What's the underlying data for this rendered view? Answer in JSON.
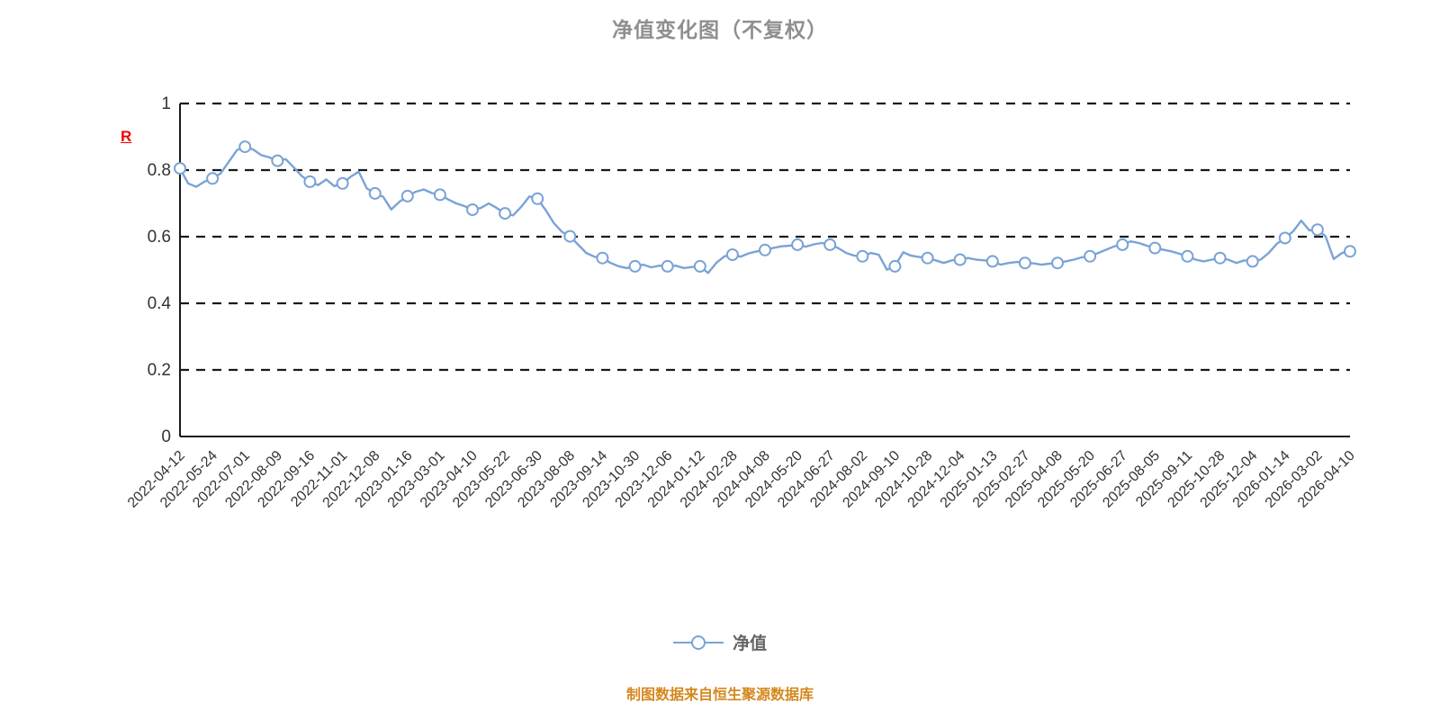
{
  "title": {
    "text": "净值变化图（不复权）",
    "color": "#8f8f8f"
  },
  "watermark": {
    "text": "R",
    "color": "#f00000"
  },
  "legend": {
    "label": "净值",
    "marker_color": "#7aa3d6"
  },
  "caption": {
    "text": "制图数据来自恒生聚源数据库",
    "color": "#d4881f"
  },
  "chart_data": {
    "type": "line",
    "title": "净值变化图（不复权）",
    "series_name": "净值",
    "line_color": "#7aa3d6",
    "marker_fill": "#ffffff",
    "grid_color": "#1a1a1a",
    "axis_color": "#1a1a1a",
    "tick_label_color": "#333333",
    "grid_style": "dashed-horizontal",
    "legend_position": "bottom-center",
    "ylim": [
      0,
      1
    ],
    "y_tick_values": [
      0,
      0.2,
      0.4,
      0.6,
      0.8,
      1
    ],
    "y_tick_labels": [
      "0",
      "0.2",
      "0.4",
      "0.6",
      "0.8",
      "1"
    ],
    "x_tick_labels": [
      "2022-04-12",
      "2022-05-24",
      "2022-07-01",
      "2022-08-09",
      "2022-09-16",
      "2022-11-01",
      "2022-12-08",
      "2023-01-16",
      "2023-03-01",
      "2023-04-10",
      "2023-05-22",
      "2023-06-30",
      "2023-08-08",
      "2023-09-14",
      "2023-10-30",
      "2023-12-06",
      "2024-01-12",
      "2024-02-28",
      "2024-04-08",
      "2024-05-20",
      "2024-06-27",
      "2024-08-02",
      "2024-09-10",
      "2024-10-28",
      "2024-12-04",
      "2025-01-13",
      "2025-02-27",
      "2025-04-08",
      "2025-05-20",
      "2025-06-27",
      "2025-08-05",
      "2025-09-11",
      "2025-10-28",
      "2025-12-04",
      "2026-01-14",
      "2026-03-02",
      "2026-04-10"
    ],
    "points_per_label_interval": 4,
    "marker_every": 4,
    "values": [
      0.805,
      0.76,
      0.75,
      0.765,
      0.775,
      0.79,
      0.825,
      0.86,
      0.87,
      0.862,
      0.845,
      0.838,
      0.828,
      0.833,
      0.808,
      0.782,
      0.765,
      0.755,
      0.772,
      0.752,
      0.76,
      0.78,
      0.795,
      0.745,
      0.73,
      0.72,
      0.682,
      0.705,
      0.722,
      0.735,
      0.742,
      0.731,
      0.726,
      0.712,
      0.7,
      0.692,
      0.681,
      0.686,
      0.7,
      0.686,
      0.67,
      0.664,
      0.69,
      0.721,
      0.714,
      0.68,
      0.641,
      0.615,
      0.601,
      0.576,
      0.551,
      0.54,
      0.536,
      0.521,
      0.511,
      0.506,
      0.511,
      0.516,
      0.508,
      0.513,
      0.511,
      0.513,
      0.506,
      0.509,
      0.511,
      0.491,
      0.521,
      0.541,
      0.546,
      0.54,
      0.55,
      0.556,
      0.56,
      0.566,
      0.571,
      0.573,
      0.576,
      0.57,
      0.577,
      0.581,
      0.576,
      0.566,
      0.551,
      0.543,
      0.541,
      0.551,
      0.546,
      0.501,
      0.511,
      0.553,
      0.543,
      0.539,
      0.536,
      0.529,
      0.521,
      0.529,
      0.531,
      0.536,
      0.531,
      0.529,
      0.526,
      0.516,
      0.521,
      0.524,
      0.521,
      0.52,
      0.516,
      0.519,
      0.521,
      0.526,
      0.531,
      0.538,
      0.541,
      0.551,
      0.561,
      0.571,
      0.576,
      0.586,
      0.581,
      0.573,
      0.566,
      0.561,
      0.556,
      0.549,
      0.541,
      0.531,
      0.526,
      0.531,
      0.536,
      0.531,
      0.521,
      0.529,
      0.526,
      0.531,
      0.551,
      0.579,
      0.596,
      0.616,
      0.648,
      0.619,
      0.621,
      0.601,
      0.533,
      0.551,
      0.556
    ]
  }
}
